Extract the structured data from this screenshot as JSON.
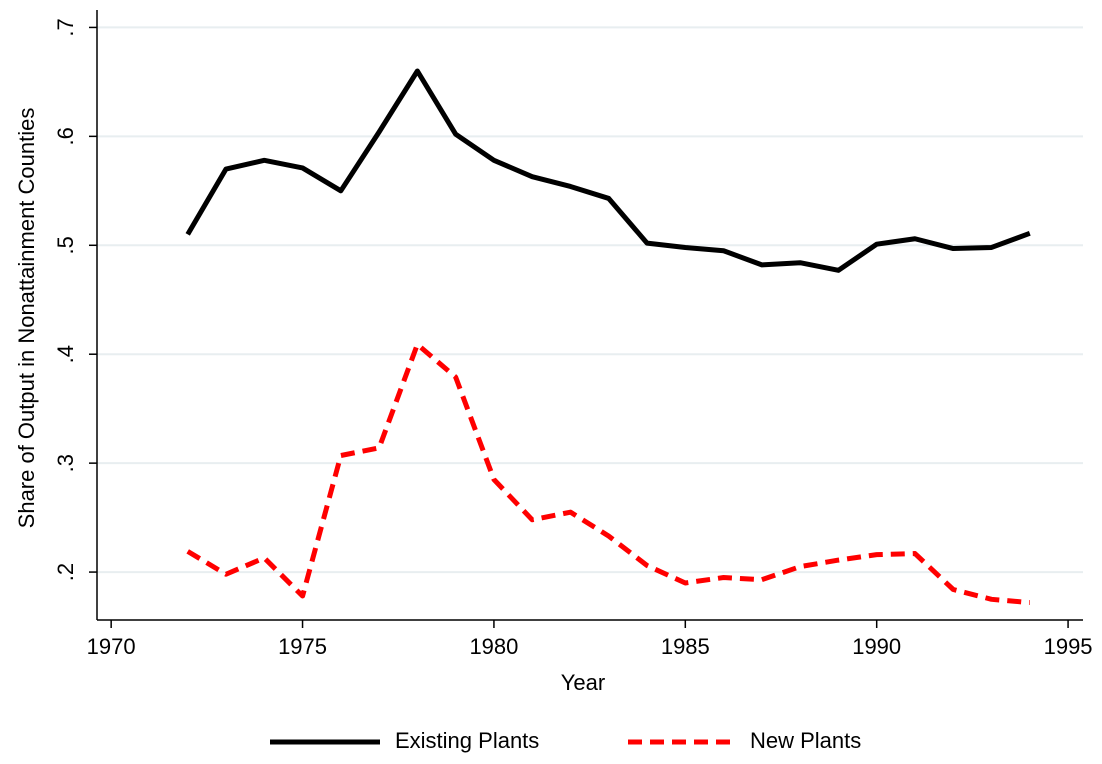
{
  "chart_data": {
    "type": "line",
    "x_label": "Year",
    "y_label": "Share of Output in Nonattainment Counties",
    "x": [
      1972,
      1973,
      1974,
      1975,
      1976,
      1977,
      1978,
      1979,
      1980,
      1981,
      1982,
      1983,
      1984,
      1985,
      1986,
      1987,
      1988,
      1989,
      1990,
      1991,
      1992,
      1993,
      1994
    ],
    "series": [
      {
        "name": "Existing Plants",
        "color": "#000000",
        "dash": "solid",
        "values": [
          0.51,
          0.57,
          0.578,
          0.571,
          0.55,
          0.604,
          0.66,
          0.602,
          0.578,
          0.563,
          0.554,
          0.543,
          0.502,
          0.498,
          0.495,
          0.482,
          0.484,
          0.477,
          0.501,
          0.506,
          0.497,
          0.498,
          0.511
        ]
      },
      {
        "name": "New Plants",
        "color": "#ff0000",
        "dash": "dashed",
        "values": [
          0.219,
          0.198,
          0.213,
          0.178,
          0.307,
          0.314,
          0.409,
          0.379,
          0.285,
          0.248,
          0.255,
          0.233,
          0.206,
          0.19,
          0.195,
          0.193,
          0.205,
          0.211,
          0.216,
          0.217,
          0.184,
          0.175,
          0.172
        ]
      }
    ],
    "xlim": [
      1969.63,
      1995.39
    ],
    "ylim": [
      0.156,
      0.716
    ],
    "xticks": [
      1970,
      1975,
      1980,
      1985,
      1990,
      1995
    ],
    "yticks": [
      {
        "value": 0.2,
        "label": ".2"
      },
      {
        "value": 0.3,
        "label": ".3"
      },
      {
        "value": 0.4,
        "label": ".4"
      },
      {
        "value": 0.5,
        "label": ".5"
      },
      {
        "value": 0.6,
        "label": ".6"
      },
      {
        "value": 0.7,
        "label": ".7"
      }
    ],
    "grid": true,
    "legend": "bottom"
  }
}
